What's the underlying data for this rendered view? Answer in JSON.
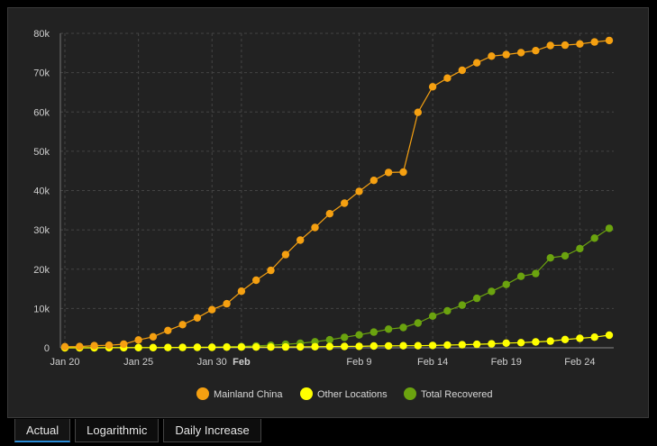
{
  "chart_data": {
    "type": "line",
    "xlabel": "",
    "ylabel": "",
    "x_tick_labels": [
      "Jan 20",
      "Jan 25",
      "Jan 30",
      "Feb",
      "Feb 9",
      "Feb 14",
      "Feb 19",
      "Feb 24"
    ],
    "x_tick_indices": [
      0,
      5,
      10,
      12,
      20,
      25,
      30,
      35
    ],
    "x_tick_bold": [
      false,
      false,
      false,
      true,
      false,
      false,
      false,
      false
    ],
    "y_tick_labels": [
      "0",
      "10k",
      "20k",
      "30k",
      "40k",
      "50k",
      "60k",
      "70k",
      "80k"
    ],
    "ylim": [
      0,
      80000
    ],
    "grid": true,
    "legend_position": "bottom",
    "series": [
      {
        "name": "Mainland China",
        "color": "#f5a011",
        "values": [
          278,
          326,
          547,
          639,
          916,
          2000,
          2800,
          4400,
          5900,
          7600,
          9700,
          11200,
          14400,
          17200,
          19700,
          23700,
          27400,
          30600,
          34100,
          36800,
          39800,
          42600,
          44600,
          44700,
          59900,
          66400,
          68600,
          70600,
          72500,
          74200,
          74600,
          75100,
          75600,
          76900,
          77000,
          77300,
          77800,
          78200
        ]
      },
      {
        "name": "Other Locations",
        "color": "#ffff00",
        "values": [
          4,
          6,
          8,
          14,
          25,
          40,
          57,
          64,
          87,
          105,
          118,
          153,
          173,
          183,
          188,
          212,
          227,
          265,
          317,
          343,
          361,
          457,
          476,
          523,
          538,
          595,
          685,
          780,
          896,
          999,
          1200,
          1300,
          1500,
          1700,
          2100,
          2400,
          2700,
          3200
        ]
      },
      {
        "name": "Total Recovered",
        "color": "#6ba30f",
        "values": [
          0,
          0,
          0,
          28,
          30,
          36,
          49,
          60,
          103,
          124,
          171,
          243,
          328,
          475,
          632,
          892,
          1153,
          1540,
          2050,
          2650,
          3281,
          3996,
          4740,
          5150,
          6295,
          8058,
          9395,
          10865,
          12583,
          14352,
          16121,
          18177,
          18890,
          22886,
          23394,
          25227,
          27905,
          30384
        ]
      }
    ]
  },
  "tabs": [
    {
      "label": "Actual",
      "active": true
    },
    {
      "label": "Logarithmic",
      "active": false
    },
    {
      "label": "Daily Increase",
      "active": false
    }
  ]
}
